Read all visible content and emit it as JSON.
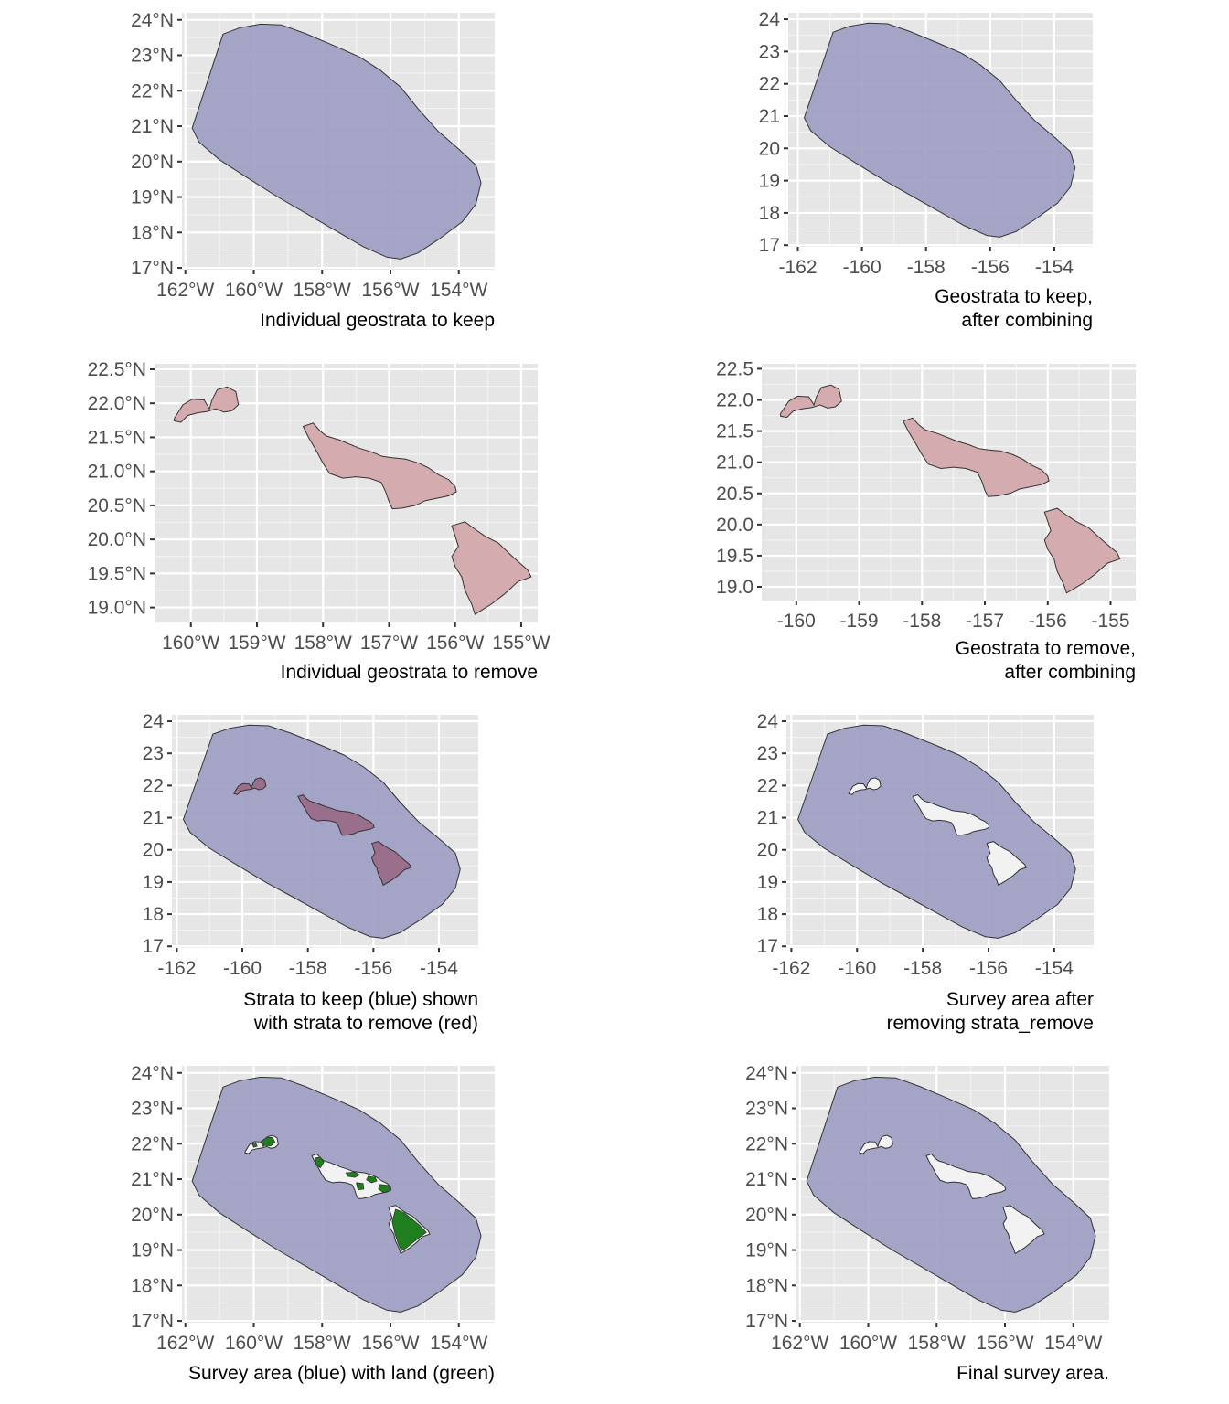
{
  "colors": {
    "panel_background": "#e6e6e6",
    "grid": "#ffffff",
    "survey_fill": "#9e9ec4",
    "remove_fill": "#d3a8ac",
    "overlap_fill": "#9a6f8c",
    "land_fill": "#1f7f1f",
    "hole_fill": "#f2f2f2",
    "outline": "#333333",
    "tick_text": "#4d4d4d",
    "caption_text": "#000000"
  },
  "panels": [
    {
      "id": "individual-geostrata-keep",
      "caption": [
        "Individual geostrata to keep"
      ],
      "x_ticks": [
        "162°W",
        "160°W",
        "158°W",
        "156°W",
        "154°W"
      ],
      "y_ticks": [
        "17°N",
        "18°N",
        "19°N",
        "20°N",
        "21°N",
        "22°N",
        "23°N",
        "24°N"
      ]
    },
    {
      "id": "geostrata-keep-combined",
      "caption": [
        "Geostrata to keep,",
        "after combining"
      ],
      "x_ticks": [
        "-162",
        "-160",
        "-158",
        "-156",
        "-154"
      ],
      "y_ticks": [
        "17",
        "18",
        "19",
        "20",
        "21",
        "22",
        "23",
        "24"
      ]
    },
    {
      "id": "individual-geostrata-remove",
      "caption": [
        "Individual geostrata to remove"
      ],
      "x_ticks": [
        "160°W",
        "159°W",
        "158°W",
        "157°W",
        "156°W",
        "155°W"
      ],
      "y_ticks": [
        "19.0°N",
        "19.5°N",
        "20.0°N",
        "20.5°N",
        "21.0°N",
        "21.5°N",
        "22.0°N",
        "22.5°N"
      ]
    },
    {
      "id": "geostrata-remove-combined",
      "caption": [
        "Geostrata to remove,",
        "after combining"
      ],
      "x_ticks": [
        "-160",
        "-159",
        "-158",
        "-157",
        "-156",
        "-155"
      ],
      "y_ticks": [
        "19.0",
        "19.5",
        "20.0",
        "20.5",
        "21.0",
        "21.5",
        "22.0",
        "22.5"
      ]
    },
    {
      "id": "strata-keep-with-remove",
      "caption": [
        "Strata to keep (blue) shown",
        "with strata to remove (red)"
      ],
      "x_ticks": [
        "-162",
        "-160",
        "-158",
        "-156",
        "-154"
      ],
      "y_ticks": [
        "17",
        "18",
        "19",
        "20",
        "21",
        "22",
        "23",
        "24"
      ]
    },
    {
      "id": "survey-area-after-remove",
      "caption": [
        "Survey area after",
        "removing strata_remove"
      ],
      "x_ticks": [
        "-162",
        "-160",
        "-158",
        "-156",
        "-154"
      ],
      "y_ticks": [
        "17",
        "18",
        "19",
        "20",
        "21",
        "22",
        "23",
        "24"
      ]
    },
    {
      "id": "survey-area-with-land",
      "caption": [
        "Survey area (blue) with land (green)"
      ],
      "x_ticks": [
        "162°W",
        "160°W",
        "158°W",
        "156°W",
        "154°W"
      ],
      "y_ticks": [
        "17°N",
        "18°N",
        "19°N",
        "20°N",
        "21°N",
        "22°N",
        "23°N",
        "24°N"
      ]
    },
    {
      "id": "final-survey-area",
      "caption": [
        "Final survey area."
      ],
      "x_ticks": [
        "162°W",
        "160°W",
        "158°W",
        "156°W",
        "154°W"
      ],
      "y_ticks": [
        "17°N",
        "18°N",
        "19°N",
        "20°N",
        "21°N",
        "22°N",
        "23°N",
        "24°N"
      ]
    }
  ]
}
